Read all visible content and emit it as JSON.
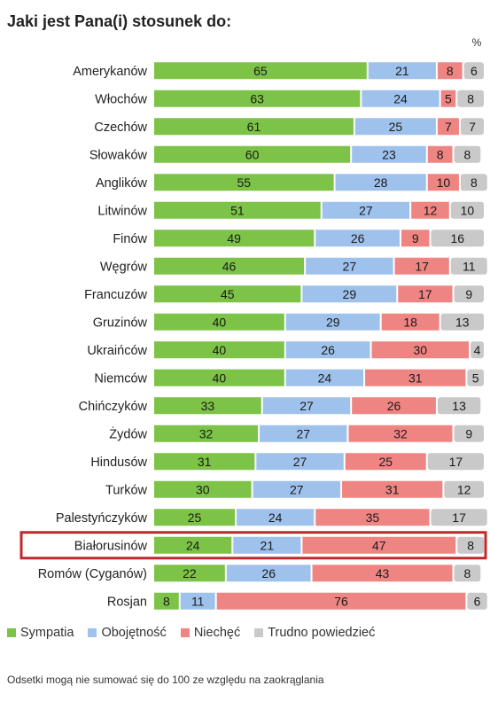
{
  "chart_data": {
    "type": "bar",
    "orientation": "horizontal",
    "stacked": true,
    "title": "Jaki jest Pana(i) stosunek do:",
    "unit_label": "%",
    "categories": [
      "Amerykanów",
      "Włochów",
      "Czechów",
      "Słowaków",
      "Anglików",
      "Litwinów",
      "Finów",
      "Węgrów",
      "Francuzów",
      "Gruzinów",
      "Ukraińców",
      "Niemców",
      "Chińczyków",
      "Żydów",
      "Hindusów",
      "Turków",
      "Palestyńczyków",
      "Białorusinów",
      "Romów (Cyganów)",
      "Rosjan"
    ],
    "series": [
      {
        "name": "Sympatia",
        "color": "#7cc347",
        "values": [
          65,
          63,
          61,
          60,
          55,
          51,
          49,
          46,
          45,
          40,
          40,
          40,
          33,
          32,
          31,
          30,
          25,
          24,
          22,
          8
        ]
      },
      {
        "name": "Obojętność",
        "color": "#9fc2ec",
        "values": [
          21,
          24,
          25,
          23,
          28,
          27,
          26,
          27,
          29,
          29,
          26,
          24,
          27,
          27,
          27,
          27,
          24,
          21,
          26,
          11
        ]
      },
      {
        "name": "Niechęć",
        "color": "#ef8583",
        "values": [
          8,
          5,
          7,
          8,
          10,
          12,
          9,
          17,
          17,
          18,
          30,
          31,
          26,
          32,
          25,
          31,
          35,
          47,
          43,
          76
        ]
      },
      {
        "name": "Trudno powiedzieć",
        "color": "#c9c9c9",
        "values": [
          6,
          8,
          7,
          8,
          8,
          10,
          16,
          11,
          9,
          13,
          4,
          5,
          13,
          9,
          17,
          12,
          17,
          8,
          8,
          6
        ]
      }
    ],
    "highlighted_category": "Białorusinów",
    "highlight_color": "#c0292b"
  },
  "footnote": "Odsetki mogą nie sumować się do 100 ze względu na zaokrąglania"
}
